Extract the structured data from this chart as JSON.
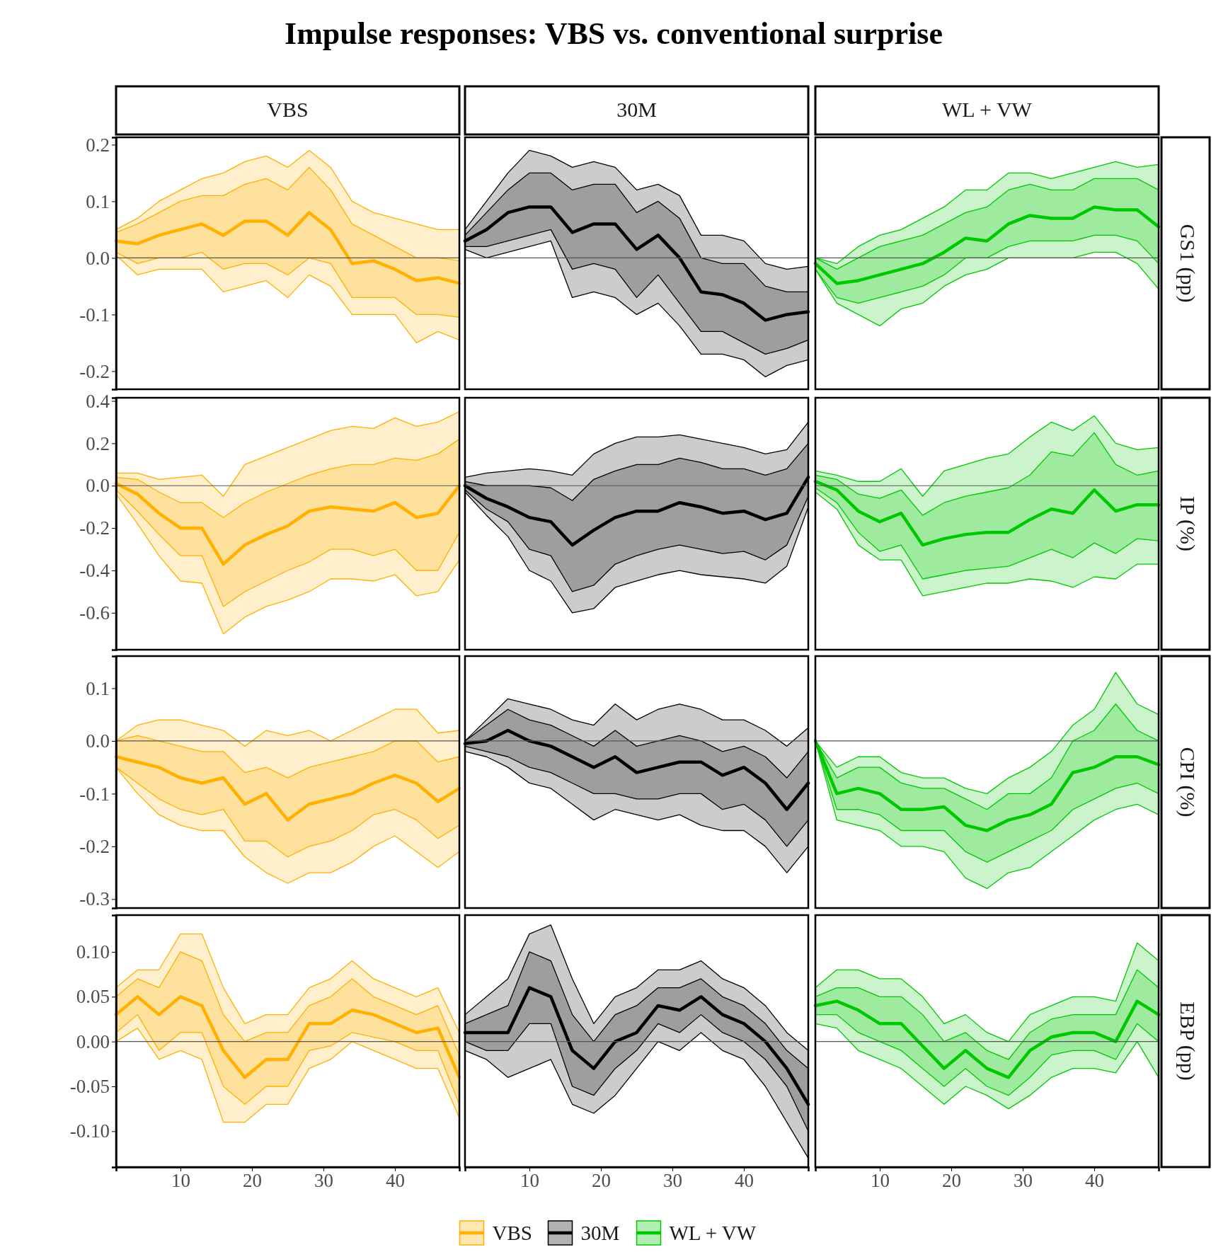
{
  "chart_data": [
    {
      "type": "line",
      "title": "Impulse responses: VBS vs. conventional surprise",
      "subtitle": "VBS",
      "x": [
        1,
        4,
        7,
        10,
        13,
        16,
        19,
        22,
        25,
        28,
        31,
        34,
        37,
        40,
        43,
        46,
        49
      ],
      "xlim": [
        1,
        49
      ],
      "ylim": [
        -0.232,
        0.213
      ],
      "yticks": [
        -0.2,
        -0.1,
        {
          "value": 0,
          "label": "0.0"
        },
        0.1,
        0.2
      ],
      "tick_labels": "y",
      "ref_lines": [
        {
          "axis": "y",
          "value": 0
        }
      ],
      "series": [
        {
          "type": "area",
          "color": "#ffb000",
          "values": [
            null,
            null,
            null,
            null,
            null,
            null,
            null,
            null,
            null,
            null,
            null,
            null,
            null,
            null,
            null,
            null,
            null
          ],
          "lower": [
            0.005,
            -0.03,
            -0.02,
            -0.02,
            -0.02,
            -0.06,
            -0.05,
            -0.04,
            -0.07,
            -0.03,
            -0.05,
            -0.1,
            -0.1,
            -0.1,
            -0.15,
            -0.13,
            -0.145
          ],
          "upper": [
            0.05,
            0.07,
            0.1,
            0.12,
            0.14,
            0.15,
            0.17,
            0.18,
            0.16,
            0.19,
            0.16,
            0.1,
            0.08,
            0.07,
            0.06,
            0.05,
            0.05
          ]
        },
        {
          "color": "#ffb000",
          "values": [
            0.03,
            0.025,
            0.04,
            0.05,
            0.06,
            0.04,
            0.065,
            0.065,
            0.04,
            0.08,
            0.05,
            -0.01,
            -0.005,
            -0.02,
            -0.04,
            -0.035,
            -0.045
          ],
          "lower": [
            0.01,
            -0.01,
            0,
            0,
            0.01,
            -0.02,
            -0.01,
            -0.01,
            -0.03,
            0,
            -0.01,
            -0.07,
            -0.07,
            -0.07,
            -0.1,
            -0.1,
            -0.105
          ],
          "upper": [
            0.045,
            0.06,
            0.08,
            0.1,
            0.11,
            0.11,
            0.13,
            0.14,
            0.12,
            0.16,
            0.12,
            0.06,
            0.04,
            0.02,
            0,
            0,
            -0.005
          ]
        }
      ]
    },
    {
      "type": "line",
      "subtitle": "30M",
      "x": [
        1,
        4,
        7,
        10,
        13,
        16,
        19,
        22,
        25,
        28,
        31,
        34,
        37,
        40,
        43,
        46,
        49
      ],
      "xlim": [
        1,
        49
      ],
      "ylim": [
        -0.232,
        0.213
      ],
      "tick_labels": false,
      "ref_lines": [
        {
          "axis": "y",
          "value": 0
        }
      ],
      "series": [
        {
          "type": "area",
          "color": "#000000",
          "values": [
            null,
            null,
            null,
            null,
            null,
            null,
            null,
            null,
            null,
            null,
            null,
            null,
            null,
            null,
            null,
            null,
            null
          ],
          "lower": [
            0.015,
            0,
            0.01,
            0.02,
            0.03,
            -0.07,
            -0.06,
            -0.07,
            -0.1,
            -0.08,
            -0.12,
            -0.17,
            -0.17,
            -0.18,
            -0.21,
            -0.19,
            -0.18
          ],
          "upper": [
            0.05,
            0.1,
            0.15,
            0.19,
            0.18,
            0.16,
            0.17,
            0.16,
            0.12,
            0.13,
            0.11,
            0.04,
            0.04,
            0.03,
            -0.01,
            -0.02,
            -0.015
          ]
        },
        {
          "color": "#000000",
          "values": [
            0.03,
            0.05,
            0.08,
            0.09,
            0.09,
            0.045,
            0.06,
            0.06,
            0.015,
            0.04,
            0,
            -0.06,
            -0.065,
            -0.08,
            -0.11,
            -0.1,
            -0.095
          ],
          "lower": [
            0.02,
            0.02,
            0.03,
            0.04,
            0.05,
            -0.02,
            -0.01,
            -0.02,
            -0.07,
            -0.03,
            -0.08,
            -0.13,
            -0.13,
            -0.15,
            -0.17,
            -0.16,
            -0.145
          ],
          "upper": [
            0.04,
            0.08,
            0.12,
            0.15,
            0.15,
            0.12,
            0.13,
            0.13,
            0.08,
            0.1,
            0.07,
            0,
            -0.01,
            -0.01,
            -0.05,
            -0.06,
            -0.06
          ]
        }
      ]
    },
    {
      "type": "line",
      "subtitle": "WL + VW",
      "y2label": "GS1 (pp)",
      "x": [
        1,
        4,
        7,
        10,
        13,
        16,
        19,
        22,
        25,
        28,
        31,
        34,
        37,
        40,
        43,
        46,
        49
      ],
      "xlim": [
        1,
        49
      ],
      "ylim": [
        -0.232,
        0.213
      ],
      "tick_labels": false,
      "ref_lines": [
        {
          "axis": "y",
          "value": 0
        }
      ],
      "series": [
        {
          "type": "area",
          "color": "#00c800",
          "values": [
            null,
            null,
            null,
            null,
            null,
            null,
            null,
            null,
            null,
            null,
            null,
            null,
            null,
            null,
            null,
            null,
            null
          ],
          "lower": [
            -0.02,
            -0.08,
            -0.1,
            -0.12,
            -0.09,
            -0.08,
            -0.05,
            -0.03,
            -0.02,
            0,
            0,
            0,
            0,
            0.01,
            0.01,
            -0.01,
            -0.055
          ],
          "upper": [
            0,
            -0.01,
            0.02,
            0.04,
            0.05,
            0.07,
            0.09,
            0.12,
            0.12,
            0.15,
            0.15,
            0.14,
            0.15,
            0.16,
            0.17,
            0.16,
            0.165
          ]
        },
        {
          "color": "#00c800",
          "values": [
            -0.01,
            -0.045,
            -0.04,
            -0.03,
            -0.02,
            -0.01,
            0.01,
            0.035,
            0.03,
            0.06,
            0.075,
            0.07,
            0.07,
            0.09,
            0.085,
            0.085,
            0.055
          ],
          "lower": [
            -0.02,
            -0.07,
            -0.08,
            -0.07,
            -0.06,
            -0.05,
            -0.03,
            0,
            0,
            0.02,
            0.03,
            0.03,
            0.03,
            0.04,
            0.04,
            0.03,
            -0.01
          ],
          "upper": [
            0,
            -0.02,
            0,
            0.02,
            0.03,
            0.04,
            0.06,
            0.08,
            0.09,
            0.12,
            0.13,
            0.12,
            0.12,
            0.14,
            0.14,
            0.14,
            0.12
          ]
        }
      ]
    },
    {
      "type": "line",
      "x": [
        1,
        4,
        7,
        10,
        13,
        16,
        19,
        22,
        25,
        28,
        31,
        34,
        37,
        40,
        43,
        46,
        49
      ],
      "xlim": [
        1,
        49
      ],
      "ylim": [
        -0.774,
        0.415
      ],
      "yticks": [
        -0.6,
        -0.4,
        -0.2,
        {
          "value": 0,
          "label": "0.0"
        },
        0.2,
        0.4
      ],
      "tick_labels": "y",
      "ref_lines": [
        {
          "axis": "y",
          "value": 0
        }
      ],
      "series": [
        {
          "type": "area",
          "color": "#ffb000",
          "values": [
            null,
            null,
            null,
            null,
            null,
            null,
            null,
            null,
            null,
            null,
            null,
            null,
            null,
            null,
            null,
            null,
            null
          ],
          "lower": [
            -0.04,
            -0.18,
            -0.33,
            -0.45,
            -0.46,
            -0.7,
            -0.62,
            -0.57,
            -0.54,
            -0.5,
            -0.44,
            -0.44,
            -0.45,
            -0.42,
            -0.52,
            -0.5,
            -0.35
          ],
          "upper": [
            0.06,
            0.06,
            0.03,
            0.04,
            0.05,
            -0.05,
            0.1,
            0.14,
            0.18,
            0.22,
            0.26,
            0.28,
            0.27,
            0.32,
            0.28,
            0.3,
            0.35
          ]
        },
        {
          "color": "#ffb000",
          "values": [
            0.01,
            -0.04,
            -0.13,
            -0.2,
            -0.2,
            -0.37,
            -0.28,
            -0.23,
            -0.19,
            -0.12,
            -0.1,
            -0.11,
            -0.12,
            -0.08,
            -0.15,
            -0.13,
            0
          ],
          "lower": [
            -0.02,
            -0.12,
            -0.23,
            -0.33,
            -0.33,
            -0.57,
            -0.5,
            -0.45,
            -0.4,
            -0.36,
            -0.3,
            -0.3,
            -0.33,
            -0.3,
            -0.4,
            -0.4,
            -0.22
          ],
          "upper": [
            0.04,
            0.03,
            -0.03,
            -0.08,
            -0.08,
            -0.15,
            -0.08,
            -0.03,
            0.01,
            0.05,
            0.08,
            0.1,
            0.1,
            0.13,
            0.12,
            0.15,
            0.22
          ]
        }
      ]
    },
    {
      "type": "line",
      "x": [
        1,
        4,
        7,
        10,
        13,
        16,
        19,
        22,
        25,
        28,
        31,
        34,
        37,
        40,
        43,
        46,
        49
      ],
      "xlim": [
        1,
        49
      ],
      "ylim": [
        -0.774,
        0.415
      ],
      "tick_labels": false,
      "ref_lines": [
        {
          "axis": "y",
          "value": 0
        }
      ],
      "series": [
        {
          "type": "area",
          "color": "#000000",
          "values": [
            null,
            null,
            null,
            null,
            null,
            null,
            null,
            null,
            null,
            null,
            null,
            null,
            null,
            null,
            null,
            null,
            null
          ],
          "lower": [
            -0.03,
            -0.14,
            -0.24,
            -0.4,
            -0.45,
            -0.6,
            -0.58,
            -0.48,
            -0.45,
            -0.42,
            -0.4,
            -0.42,
            -0.43,
            -0.44,
            -0.46,
            -0.38,
            -0.1
          ],
          "upper": [
            0.04,
            0.06,
            0.07,
            0.08,
            0.07,
            0.05,
            0.15,
            0.2,
            0.23,
            0.23,
            0.24,
            0.22,
            0.2,
            0.18,
            0.15,
            0.17,
            0.3
          ]
        },
        {
          "color": "#000000",
          "values": [
            0,
            -0.06,
            -0.1,
            -0.15,
            -0.17,
            -0.28,
            -0.21,
            -0.15,
            -0.12,
            -0.12,
            -0.08,
            -0.1,
            -0.13,
            -0.12,
            -0.16,
            -0.13,
            0.04
          ],
          "lower": [
            -0.02,
            -0.11,
            -0.17,
            -0.3,
            -0.33,
            -0.5,
            -0.47,
            -0.37,
            -0.33,
            -0.3,
            -0.28,
            -0.3,
            -0.32,
            -0.31,
            -0.35,
            -0.28,
            -0.05
          ],
          "upper": [
            0.02,
            0,
            0,
            0,
            -0.01,
            -0.07,
            0.03,
            0.07,
            0.1,
            0.1,
            0.13,
            0.11,
            0.08,
            0.08,
            0.05,
            0.08,
            0.2
          ]
        }
      ]
    },
    {
      "type": "line",
      "y2label": "IP (%)",
      "x": [
        1,
        4,
        7,
        10,
        13,
        16,
        19,
        22,
        25,
        28,
        31,
        34,
        37,
        40,
        43,
        46,
        49
      ],
      "xlim": [
        1,
        49
      ],
      "ylim": [
        -0.774,
        0.415
      ],
      "tick_labels": false,
      "ref_lines": [
        {
          "axis": "y",
          "value": 0
        }
      ],
      "series": [
        {
          "type": "area",
          "color": "#00c800",
          "values": [
            null,
            null,
            null,
            null,
            null,
            null,
            null,
            null,
            null,
            null,
            null,
            null,
            null,
            null,
            null,
            null,
            null
          ],
          "lower": [
            -0.03,
            -0.11,
            -0.28,
            -0.35,
            -0.35,
            -0.52,
            -0.5,
            -0.48,
            -0.46,
            -0.46,
            -0.44,
            -0.45,
            -0.48,
            -0.43,
            -0.44,
            -0.37,
            -0.37
          ],
          "upper": [
            0.07,
            0.05,
            0.02,
            0.02,
            0.08,
            -0.05,
            0.07,
            0.1,
            0.13,
            0.15,
            0.23,
            0.3,
            0.26,
            0.33,
            0.2,
            0.17,
            0.18
          ]
        },
        {
          "color": "#00c800",
          "values": [
            0.02,
            -0.02,
            -0.12,
            -0.17,
            -0.13,
            -0.28,
            -0.25,
            -0.23,
            -0.22,
            -0.22,
            -0.16,
            -0.11,
            -0.13,
            -0.02,
            -0.12,
            -0.09,
            -0.09
          ],
          "lower": [
            -0.01,
            -0.08,
            -0.22,
            -0.31,
            -0.28,
            -0.44,
            -0.42,
            -0.4,
            -0.39,
            -0.38,
            -0.34,
            -0.3,
            -0.34,
            -0.27,
            -0.32,
            -0.25,
            -0.26
          ],
          "upper": [
            0.05,
            0.03,
            -0.04,
            -0.06,
            -0.02,
            -0.14,
            -0.08,
            -0.05,
            -0.03,
            -0.01,
            0.05,
            0.16,
            0.14,
            0.25,
            0.1,
            0.05,
            0.07
          ]
        }
      ]
    },
    {
      "type": "line",
      "x": [
        1,
        4,
        7,
        10,
        13,
        16,
        19,
        22,
        25,
        28,
        31,
        34,
        37,
        40,
        43,
        46,
        49
      ],
      "xlim": [
        1,
        49
      ],
      "ylim": [
        -0.317,
        0.161
      ],
      "yticks": [
        -0.3,
        -0.2,
        -0.1,
        {
          "value": 0,
          "label": "0.0"
        },
        0.1
      ],
      "tick_labels": "y",
      "ref_lines": [
        {
          "axis": "y",
          "value": 0
        }
      ],
      "series": [
        {
          "type": "area",
          "color": "#ffb000",
          "values": [
            null,
            null,
            null,
            null,
            null,
            null,
            null,
            null,
            null,
            null,
            null,
            null,
            null,
            null,
            null,
            null,
            null
          ],
          "lower": [
            -0.05,
            -0.1,
            -0.14,
            -0.16,
            -0.17,
            -0.17,
            -0.22,
            -0.25,
            -0.27,
            -0.25,
            -0.25,
            -0.23,
            -0.2,
            -0.18,
            -0.21,
            -0.24,
            -0.21
          ],
          "upper": [
            0,
            0.03,
            0.04,
            0.04,
            0.03,
            0.02,
            -0.01,
            0.02,
            0.01,
            0.02,
            0,
            0.02,
            0.04,
            0.06,
            0.06,
            0.015,
            0.02
          ]
        },
        {
          "color": "#ffb000",
          "values": [
            -0.03,
            -0.04,
            -0.05,
            -0.07,
            -0.08,
            -0.07,
            -0.12,
            -0.1,
            -0.15,
            -0.12,
            -0.11,
            -0.1,
            -0.08,
            -0.065,
            -0.08,
            -0.115,
            -0.09
          ],
          "lower": [
            -0.05,
            -0.08,
            -0.11,
            -0.13,
            -0.14,
            -0.13,
            -0.19,
            -0.19,
            -0.22,
            -0.2,
            -0.19,
            -0.17,
            -0.14,
            -0.13,
            -0.15,
            -0.185,
            -0.16
          ],
          "upper": [
            0,
            0.01,
            0,
            -0.01,
            -0.02,
            -0.02,
            -0.06,
            -0.05,
            -0.07,
            -0.05,
            -0.04,
            -0.03,
            -0.02,
            0,
            0,
            -0.04,
            -0.03
          ]
        }
      ]
    },
    {
      "type": "line",
      "x": [
        1,
        4,
        7,
        10,
        13,
        16,
        19,
        22,
        25,
        28,
        31,
        34,
        37,
        40,
        43,
        46,
        49
      ],
      "xlim": [
        1,
        49
      ],
      "ylim": [
        -0.317,
        0.161
      ],
      "tick_labels": false,
      "ref_lines": [
        {
          "axis": "y",
          "value": 0
        }
      ],
      "series": [
        {
          "type": "area",
          "color": "#000000",
          "values": [
            null,
            null,
            null,
            null,
            null,
            null,
            null,
            null,
            null,
            null,
            null,
            null,
            null,
            null,
            null,
            null,
            null
          ],
          "lower": [
            -0.02,
            -0.03,
            -0.05,
            -0.08,
            -0.09,
            -0.12,
            -0.15,
            -0.13,
            -0.14,
            -0.15,
            -0.14,
            -0.16,
            -0.17,
            -0.17,
            -0.2,
            -0.25,
            -0.2
          ],
          "upper": [
            0,
            0.04,
            0.08,
            0.07,
            0.06,
            0.04,
            0.03,
            0.07,
            0.04,
            0.06,
            0.07,
            0.06,
            0.04,
            0.04,
            0.02,
            -0.01,
            0.025
          ]
        },
        {
          "color": "#000000",
          "values": [
            -0.005,
            0,
            0.02,
            0,
            -0.01,
            -0.03,
            -0.05,
            -0.03,
            -0.06,
            -0.05,
            -0.04,
            -0.04,
            -0.065,
            -0.05,
            -0.08,
            -0.13,
            -0.08
          ],
          "lower": [
            -0.01,
            -0.02,
            -0.03,
            -0.05,
            -0.06,
            -0.08,
            -0.1,
            -0.1,
            -0.11,
            -0.11,
            -0.1,
            -0.1,
            -0.13,
            -0.12,
            -0.15,
            -0.2,
            -0.15
          ],
          "upper": [
            0,
            0.03,
            0.06,
            0.04,
            0.03,
            0.01,
            -0.01,
            0.02,
            -0.01,
            0,
            0.01,
            0,
            -0.02,
            -0.01,
            -0.03,
            -0.07,
            -0.02
          ]
        }
      ]
    },
    {
      "type": "line",
      "y2label": "CPI (%)",
      "x": [
        1,
        4,
        7,
        10,
        13,
        16,
        19,
        22,
        25,
        28,
        31,
        34,
        37,
        40,
        43,
        46,
        49
      ],
      "xlim": [
        1,
        49
      ],
      "ylim": [
        -0.317,
        0.161
      ],
      "tick_labels": false,
      "ref_lines": [
        {
          "axis": "y",
          "value": 0
        }
      ],
      "series": [
        {
          "type": "area",
          "color": "#00c800",
          "values": [
            null,
            null,
            null,
            null,
            null,
            null,
            null,
            null,
            null,
            null,
            null,
            null,
            null,
            null,
            null,
            null,
            null
          ],
          "lower": [
            0,
            -0.15,
            -0.16,
            -0.17,
            -0.2,
            -0.2,
            -0.21,
            -0.26,
            -0.28,
            -0.25,
            -0.24,
            -0.21,
            -0.18,
            -0.15,
            -0.13,
            -0.12,
            -0.14
          ],
          "upper": [
            0,
            -0.05,
            -0.03,
            -0.03,
            -0.06,
            -0.07,
            -0.07,
            -0.09,
            -0.1,
            -0.07,
            -0.05,
            -0.02,
            0.03,
            0.06,
            0.13,
            0.07,
            0.05
          ]
        },
        {
          "color": "#00c800",
          "values": [
            0,
            -0.1,
            -0.09,
            -0.1,
            -0.13,
            -0.13,
            -0.125,
            -0.16,
            -0.17,
            -0.15,
            -0.14,
            -0.12,
            -0.06,
            -0.05,
            -0.03,
            -0.03,
            -0.045
          ],
          "lower": [
            0,
            -0.13,
            -0.13,
            -0.14,
            -0.17,
            -0.17,
            -0.17,
            -0.21,
            -0.23,
            -0.21,
            -0.19,
            -0.17,
            -0.13,
            -0.11,
            -0.09,
            -0.08,
            -0.1
          ],
          "upper": [
            0,
            -0.07,
            -0.05,
            -0.05,
            -0.08,
            -0.09,
            -0.09,
            -0.11,
            -0.13,
            -0.1,
            -0.1,
            -0.07,
            0,
            0.02,
            0.07,
            0.02,
            0
          ]
        }
      ]
    },
    {
      "type": "line",
      "legend": "bottom",
      "x": [
        1,
        4,
        7,
        10,
        13,
        16,
        19,
        22,
        25,
        28,
        31,
        34,
        37,
        40,
        43,
        46,
        49
      ],
      "xlim": [
        1,
        49
      ],
      "xticks": [
        10,
        20,
        30,
        40
      ],
      "ylim": [
        -0.14,
        0.141
      ],
      "yticks": [
        {
          "value": -0.1,
          "label": "-0.10"
        },
        {
          "value": -0.05,
          "label": "-0.05"
        },
        {
          "value": 0,
          "label": "0.00"
        },
        {
          "value": 0.05,
          "label": "0.05"
        },
        {
          "value": 0.1,
          "label": "0.10"
        }
      ],
      "ref_lines": [
        {
          "axis": "y",
          "value": 0
        }
      ],
      "series": [
        {
          "type": "area",
          "color": "#ffb000",
          "values": [
            null,
            null,
            null,
            null,
            null,
            null,
            null,
            null,
            null,
            null,
            null,
            null,
            null,
            null,
            null,
            null,
            null
          ],
          "lower": [
            0,
            0.015,
            -0.02,
            -0.01,
            -0.02,
            -0.09,
            -0.09,
            -0.07,
            -0.07,
            -0.03,
            -0.02,
            0,
            -0.01,
            -0.02,
            -0.03,
            -0.03,
            -0.085
          ],
          "upper": [
            0.06,
            0.08,
            0.08,
            0.12,
            0.12,
            0.06,
            0.02,
            0.03,
            0.03,
            0.06,
            0.07,
            0.09,
            0.07,
            0.06,
            0.05,
            0.06,
            0.01
          ]
        },
        {
          "name": "VBS",
          "color": "#ffb000",
          "values": [
            0.03,
            0.05,
            0.03,
            0.05,
            0.04,
            -0.01,
            -0.04,
            -0.02,
            -0.02,
            0.02,
            0.02,
            0.035,
            0.03,
            0.02,
            0.01,
            0.015,
            -0.04
          ],
          "lower": [
            0.01,
            0.03,
            -0.01,
            0.01,
            0.01,
            -0.05,
            -0.07,
            -0.05,
            -0.05,
            -0.01,
            -0.005,
            0.01,
            0.005,
            0,
            -0.01,
            -0.01,
            -0.07
          ],
          "upper": [
            0.05,
            0.07,
            0.06,
            0.1,
            0.09,
            0.03,
            0,
            0.01,
            0.01,
            0.04,
            0.05,
            0.07,
            0.05,
            0.04,
            0.03,
            0.04,
            -0.015
          ]
        }
      ]
    },
    {
      "type": "line",
      "legend": "bottom",
      "x": [
        1,
        4,
        7,
        10,
        13,
        16,
        19,
        22,
        25,
        28,
        31,
        34,
        37,
        40,
        43,
        46,
        49
      ],
      "xlim": [
        1,
        49
      ],
      "xticks": [
        10,
        20,
        30,
        40
      ],
      "ylim": [
        -0.14,
        0.141
      ],
      "tick_labels": "x",
      "ref_lines": [
        {
          "axis": "y",
          "value": 0
        }
      ],
      "series": [
        {
          "type": "area",
          "color": "#000000",
          "values": [
            null,
            null,
            null,
            null,
            null,
            null,
            null,
            null,
            null,
            null,
            null,
            null,
            null,
            null,
            null,
            null,
            null
          ],
          "lower": [
            -0.01,
            -0.02,
            -0.04,
            -0.03,
            -0.02,
            -0.07,
            -0.08,
            -0.06,
            -0.03,
            0,
            -0.01,
            0.01,
            -0.01,
            -0.02,
            -0.05,
            -0.09,
            -0.13
          ],
          "upper": [
            0.03,
            0.05,
            0.07,
            0.12,
            0.13,
            0.07,
            0.02,
            0.05,
            0.06,
            0.08,
            0.08,
            0.09,
            0.07,
            0.06,
            0.04,
            0.01,
            -0.01
          ]
        },
        {
          "name": "30M",
          "color": "#000000",
          "values": [
            0.01,
            0.01,
            0.01,
            0.06,
            0.05,
            -0.01,
            -0.03,
            0,
            0.01,
            0.04,
            0.035,
            0.05,
            0.03,
            0.02,
            0,
            -0.03,
            -0.07
          ],
          "lower": [
            0,
            -0.01,
            -0.01,
            0.02,
            0.02,
            -0.05,
            -0.06,
            -0.03,
            -0.01,
            0.02,
            0.01,
            0.03,
            0.01,
            0,
            -0.02,
            -0.05,
            -0.1
          ],
          "upper": [
            0.02,
            0.03,
            0.04,
            0.1,
            0.09,
            0.03,
            0,
            0.03,
            0.04,
            0.06,
            0.06,
            0.07,
            0.05,
            0.04,
            0.02,
            -0.01,
            -0.03
          ]
        }
      ]
    },
    {
      "type": "line",
      "legend": "bottom",
      "y2label": "EBP (pp)",
      "x": [
        1,
        4,
        7,
        10,
        13,
        16,
        19,
        22,
        25,
        28,
        31,
        34,
        37,
        40,
        43,
        46,
        49
      ],
      "xlim": [
        1,
        49
      ],
      "xticks": [
        10,
        20,
        30,
        40
      ],
      "ylim": [
        -0.14,
        0.141
      ],
      "tick_labels": "x",
      "ref_lines": [
        {
          "axis": "y",
          "value": 0
        }
      ],
      "series": [
        {
          "type": "area",
          "color": "#00c800",
          "values": [
            null,
            null,
            null,
            null,
            null,
            null,
            null,
            null,
            null,
            null,
            null,
            null,
            null,
            null,
            null,
            null,
            null
          ],
          "lower": [
            0.02,
            0.015,
            -0.01,
            -0.02,
            -0.03,
            -0.05,
            -0.07,
            -0.05,
            -0.06,
            -0.075,
            -0.06,
            -0.04,
            -0.03,
            -0.03,
            -0.035,
            0,
            -0.04
          ],
          "upper": [
            0.06,
            0.08,
            0.08,
            0.07,
            0.07,
            0.05,
            0.02,
            0.03,
            0.01,
            0,
            0.03,
            0.04,
            0.05,
            0.05,
            0.045,
            0.11,
            0.09
          ]
        },
        {
          "name": "WL + VW",
          "color": "#00c800",
          "values": [
            0.04,
            0.045,
            0.035,
            0.02,
            0.02,
            -0.005,
            -0.03,
            -0.01,
            -0.03,
            -0.04,
            -0.01,
            0.005,
            0.01,
            0.01,
            0,
            0.045,
            0.03
          ],
          "lower": [
            0.03,
            0.03,
            0.01,
            0,
            -0.01,
            -0.03,
            -0.05,
            -0.03,
            -0.05,
            -0.06,
            -0.04,
            -0.015,
            -0.01,
            -0.01,
            -0.02,
            0.02,
            0
          ],
          "upper": [
            0.05,
            0.06,
            0.06,
            0.05,
            0.05,
            0.03,
            0,
            0.01,
            -0.01,
            -0.02,
            0.01,
            0.025,
            0.03,
            0.03,
            0.03,
            0.08,
            0.06
          ]
        }
      ]
    }
  ]
}
